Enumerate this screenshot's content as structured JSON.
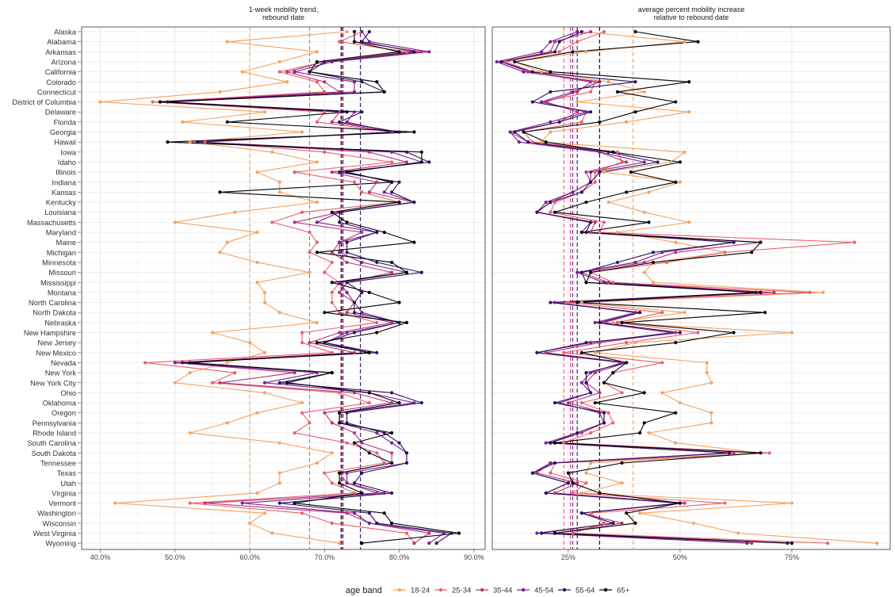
{
  "chart_data": {
    "type": "line",
    "legend": {
      "title": "age band",
      "placement": "bottom",
      "entries": [
        {
          "label": "18-24",
          "color": "#f4a261"
        },
        {
          "label": "25-34",
          "color": "#e8606a"
        },
        {
          "label": "35-44",
          "color": "#b8327a"
        },
        {
          "label": "45-54",
          "color": "#7a1f8e"
        },
        {
          "label": "55-64",
          "color": "#2c115f"
        },
        {
          "label": "65+",
          "color": "#000004"
        }
      ]
    },
    "states": [
      "Alaska",
      "Alabama",
      "Arkansas",
      "Arizona",
      "California",
      "Colorado",
      "Connecticut",
      "District of Columbia",
      "Delaware",
      "Florida",
      "Georgia",
      "Hawaii",
      "Iowa",
      "Idaho",
      "Illinois",
      "Indiana",
      "Kansas",
      "Kentucky",
      "Louisiana",
      "Massachusetts",
      "Maryland",
      "Maine",
      "Michigan",
      "Minnesota",
      "Missouri",
      "Mississippi",
      "Montana",
      "North Carolina",
      "North Dakota",
      "Nebraska",
      "New Hampshire",
      "New Jersey",
      "New Mexico",
      "Nevada",
      "New York",
      "New York City",
      "Ohio",
      "Oklahoma",
      "Oregon",
      "Pennsylvania",
      "Rhode Island",
      "South Carolina",
      "South Dakota",
      "Tennessee",
      "Texas",
      "Utah",
      "Virginia",
      "Vermont",
      "Washington",
      "Wisconsin",
      "West Virginia",
      "Wyoming"
    ],
    "panels": [
      {
        "title": "1-week mobility trend,\nrebound date",
        "xlim": [
          37.5,
          91.5
        ],
        "ticks": [
          40,
          50,
          60,
          70,
          80,
          90
        ],
        "tick_labels": [
          "40.0%",
          "50.0%",
          "60.0%",
          "70.0%",
          "80.0%",
          "90.0%"
        ],
        "means": [
          60.0,
          68.0,
          72.2,
          72.5,
          74.8,
          72.3
        ],
        "series": [
          {
            "name": "18-24",
            "values": [
              73,
              57,
              69,
              64,
              59,
              65,
              56,
              40,
              62,
              51,
              67,
              52,
              63,
              69,
              61,
              64,
              64,
              69,
              58,
              50,
              61,
              57,
              56,
              61,
              68,
              61,
              62,
              62,
              64,
              69,
              55,
              60,
              62,
              57,
              52,
              50,
              62,
              67,
              61,
              57,
              52,
              64,
              71,
              69,
              64,
              64,
              61,
              42,
              62,
              60,
              63,
              72
            ]
          },
          {
            "name": "25-34",
            "values": [
              75,
              72,
              81,
              70,
              64,
              69,
              70,
              47,
              70,
              69,
              79,
              54,
              70,
              79,
              66,
              74,
              75,
              80,
              67,
              63,
              68,
              69,
              68,
              71,
              70,
              72,
              71,
              71,
              72,
              77,
              67,
              67,
              71,
              46,
              58,
              55,
              72,
              76,
              67,
              68,
              66,
              73,
              77,
              78,
              70,
              71,
              74,
              52,
              67,
              71,
              81,
              82
            ]
          },
          {
            "name": "35-44",
            "values": [
              74,
              74,
              83,
              70,
              65,
              70,
              72,
              48,
              72,
              71,
              79,
              53,
              76,
              81,
              71,
              77,
              76,
              82,
              72,
              66,
              75,
              72,
              71,
              73,
              79,
              73,
              72,
              74,
              73,
              79,
              72,
              68,
              74,
              50,
              66,
              56,
              74,
              79,
              70,
              71,
              74,
              75,
              79,
              79,
              72,
              73,
              77,
              54,
              73,
              76,
              84,
              82
            ]
          },
          {
            "name": "45-54",
            "values": [
              75,
              76,
              84,
              71,
              66,
              74,
              74,
              48,
              74,
              73,
              79,
              53,
              79,
              83,
              73,
              79,
              78,
              82,
              72,
              69,
              77,
              72,
              72,
              75,
              81,
              72,
              73,
              74,
              75,
              80,
              73,
              70,
              76,
              50,
              69,
              62,
              76,
              82,
              72,
              72,
              77,
              79,
              81,
              81,
              73,
              73,
              78,
              59,
              74,
              76,
              86,
              84
            ]
          },
          {
            "name": "55-64",
            "values": [
              76,
              75,
              82,
              70,
              68,
              75,
              78,
              49,
              75,
              72,
              80,
              53,
              81,
              84,
              72,
              80,
              79,
              82,
              72,
              72,
              77,
              73,
              73,
              77,
              83,
              73,
              75,
              74,
              74,
              80,
              74,
              70,
              77,
              51,
              71,
              64,
              79,
              83,
              73,
              73,
              78,
              80,
              81,
              81,
              75,
              74,
              79,
              64,
              76,
              77,
              87,
              85
            ]
          },
          {
            "name": "65+",
            "values": [
              74,
              74,
              80,
              69,
              68,
              77,
              78,
              48,
              73,
              57,
              82,
              49,
              83,
              83,
              73,
              79,
              56,
              80,
              71,
              73,
              78,
              82,
              69,
              79,
              81,
              71,
              76,
              80,
              70,
              81,
              77,
              69,
              76,
              52,
              71,
              65,
              76,
              80,
              72,
              72,
              79,
              74,
              76,
              79,
              72,
              72,
              75,
              66,
              78,
              79,
              88,
              75
            ]
          }
        ]
      },
      {
        "title": "average percent mobility increase\nrelative to rebound date",
        "xlim": [
          8,
          97
        ],
        "ticks": [
          25,
          50,
          75
        ],
        "tick_labels": [
          "25%",
          "50%",
          "75%"
        ],
        "means": [
          39.5,
          24.0,
          25.5,
          26.0,
          27.0,
          32.0
        ],
        "series": [
          {
            "name": "18-24",
            "values": [
              28,
              51,
              29,
              13,
              19,
              34,
              42,
              27,
              52,
              38,
              21,
              19,
              51,
              48,
              33,
              50,
              43,
              34,
              42,
              52,
              36,
              49,
              60,
              44,
              42,
              44,
              82,
              28,
              51,
              35,
              75,
              40,
              31,
              56,
              56,
              57,
              46,
              50,
              57,
              57,
              43,
              49,
              68,
              30,
              29,
              37,
              28,
              75,
              41,
              53,
              63,
              94
            ]
          },
          {
            "name": "25-34",
            "values": [
              33,
              27,
              23,
              11,
              17,
              31,
              30,
              19,
              29,
              28,
              15,
              17,
              36,
              37,
              31,
              31,
              28,
              22,
              21,
              33,
              32,
              89,
              60,
              47,
              30,
              35,
              79,
              25,
              46,
              36,
              54,
              38,
              24,
              46,
              35,
              33,
              37,
              28,
              34,
              35,
              30,
              24,
              70,
              22,
              21,
              29,
              26,
              60,
              30,
              33,
              26,
              83
            ]
          },
          {
            "name": "35-44",
            "values": [
              30,
              22,
              21,
              10,
              16,
              30,
              27,
              20,
              27,
              23,
              12,
              16,
              32,
              38,
              29,
              30,
              26,
              21,
              18,
              31,
              30,
              68,
              49,
              42,
              28,
              34,
              71,
              22,
              41,
              33,
              49,
              32,
              20,
              38,
              31,
              29,
              32,
              25,
              33,
              33,
              28,
              21,
              62,
              21,
              18,
              27,
              22,
              51,
              28,
              37,
              22,
              66
            ]
          },
          {
            "name": "45-54",
            "values": [
              27,
              21,
              19,
              9,
              15,
              32,
              26,
              19,
              29,
              21,
              12,
              14,
              32,
              42,
              30,
              30,
              26,
              20,
              18,
              30,
              28,
              62,
              46,
              40,
              27,
              33,
              68,
              22,
              40,
              31,
              48,
              30,
              18,
              37,
              30,
              28,
              30,
              23,
              32,
              33,
              27,
              20,
              61,
              21,
              17,
              25,
              20,
              50,
              28,
              35,
              18,
              65
            ]
          },
          {
            "name": "55-64",
            "values": [
              28,
              23,
              22,
              10,
              17,
              40,
              21,
              17,
              30,
              23,
              13,
              16,
              34,
              45,
              32,
              30,
              28,
              21,
              18,
              30,
              29,
              62,
              44,
              36,
              28,
              29,
              67,
              21,
              41,
              32,
              50,
              29,
              18,
              38,
              29,
              29,
              30,
              22,
              33,
              33,
              27,
              21,
              61,
              22,
              17,
              25,
              20,
              50,
              28,
              35,
              19,
              74
            ]
          },
          {
            "name": "65+",
            "values": [
              40,
              54,
              26,
              13,
              21,
              52,
              36,
              49,
              40,
              32,
              15,
              20,
              35,
              50,
              39,
              49,
              38,
              29,
              22,
              43,
              28,
              68,
              66,
              44,
              30,
              29,
              68,
              27,
              69,
              37,
              62,
              49,
              28,
              38,
              35,
              33,
              42,
              31,
              49,
              42,
              41,
              22,
              68,
              37,
              25,
              26,
              32,
              50,
              38,
              40,
              22,
              75
            ]
          }
        ]
      }
    ]
  }
}
